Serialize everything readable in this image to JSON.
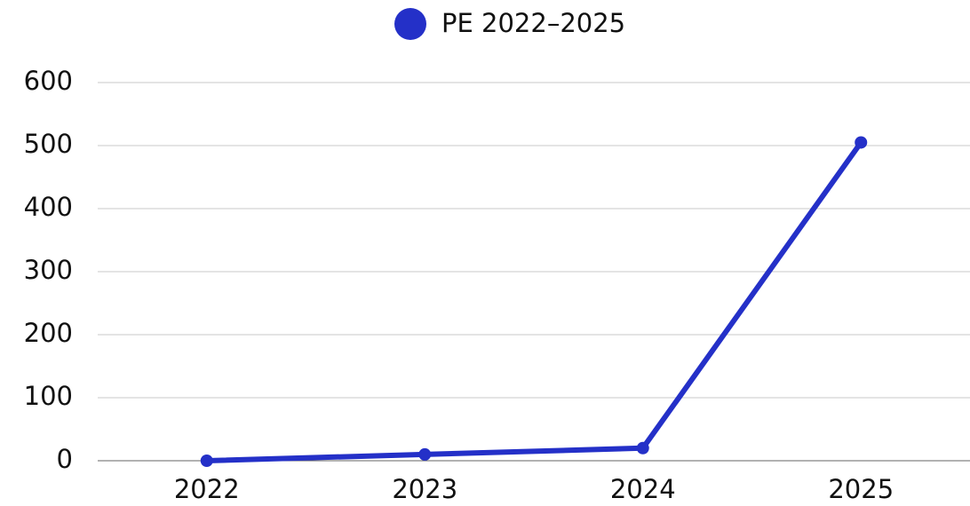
{
  "chart_data": {
    "type": "line",
    "categories": [
      "2022",
      "2023",
      "2024",
      "2025"
    ],
    "series": [
      {
        "name": "PE 2022–2025",
        "color": "#2430c8",
        "values": [
          0,
          10,
          20,
          505
        ]
      }
    ],
    "ylim": [
      0,
      600
    ],
    "yticks": [
      0,
      100,
      200,
      300,
      400,
      500,
      600
    ],
    "grid": true,
    "legend": "top"
  }
}
